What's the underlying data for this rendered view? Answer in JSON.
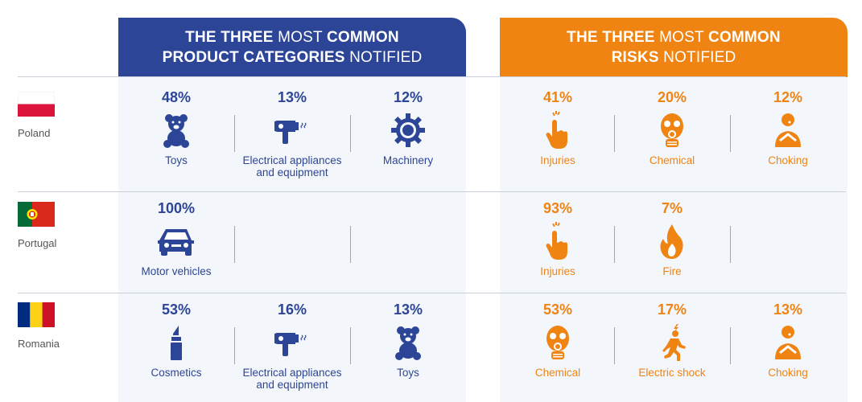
{
  "headers": {
    "categories": {
      "line1_b": "THE THREE",
      "line1_n": " MOST ",
      "line1_b2": "COMMON",
      "line2_b": "PRODUCT CATEGORIES",
      "line2_n": " NOTIFIED"
    },
    "risks": {
      "line1_b": "THE THREE",
      "line1_n": " MOST ",
      "line1_b2": "COMMON",
      "line2_b": "RISKS",
      "line2_n": " NOTIFIED"
    }
  },
  "colors": {
    "blue": "#2d4597",
    "orange": "#ef8413",
    "panel": "#f3f6fb"
  },
  "rows": [
    {
      "country": "Poland",
      "categories": [
        {
          "pct": "48%",
          "label": "Toys",
          "icon": "teddy-bear-icon"
        },
        {
          "pct": "13%",
          "label": "Electrical appliances and equipment",
          "icon": "hair-dryer-icon"
        },
        {
          "pct": "12%",
          "label": "Machinery",
          "icon": "gear-icon"
        }
      ],
      "risks": [
        {
          "pct": "41%",
          "label": "Injuries",
          "icon": "injured-finger-icon"
        },
        {
          "pct": "20%",
          "label": "Chemical",
          "icon": "gas-mask-icon"
        },
        {
          "pct": "12%",
          "label": "Choking",
          "icon": "choking-person-icon"
        }
      ]
    },
    {
      "country": "Portugal",
      "categories": [
        {
          "pct": "100%",
          "label": "Motor vehicles",
          "icon": "car-icon"
        }
      ],
      "risks": [
        {
          "pct": "93%",
          "label": "Injuries",
          "icon": "injured-finger-icon"
        },
        {
          "pct": "7%",
          "label": "Fire",
          "icon": "fire-icon"
        }
      ]
    },
    {
      "country": "Romania",
      "categories": [
        {
          "pct": "53%",
          "label": "Cosmetics",
          "icon": "lipstick-icon"
        },
        {
          "pct": "16%",
          "label": "Electrical appliances and equipment",
          "icon": "hair-dryer-icon"
        },
        {
          "pct": "13%",
          "label": "Toys",
          "icon": "teddy-bear-icon"
        }
      ],
      "risks": [
        {
          "pct": "53%",
          "label": "Chemical",
          "icon": "gas-mask-icon"
        },
        {
          "pct": "17%",
          "label": "Electric shock",
          "icon": "electric-shock-icon"
        },
        {
          "pct": "13%",
          "label": "Choking",
          "icon": "choking-person-icon"
        }
      ]
    }
  ]
}
